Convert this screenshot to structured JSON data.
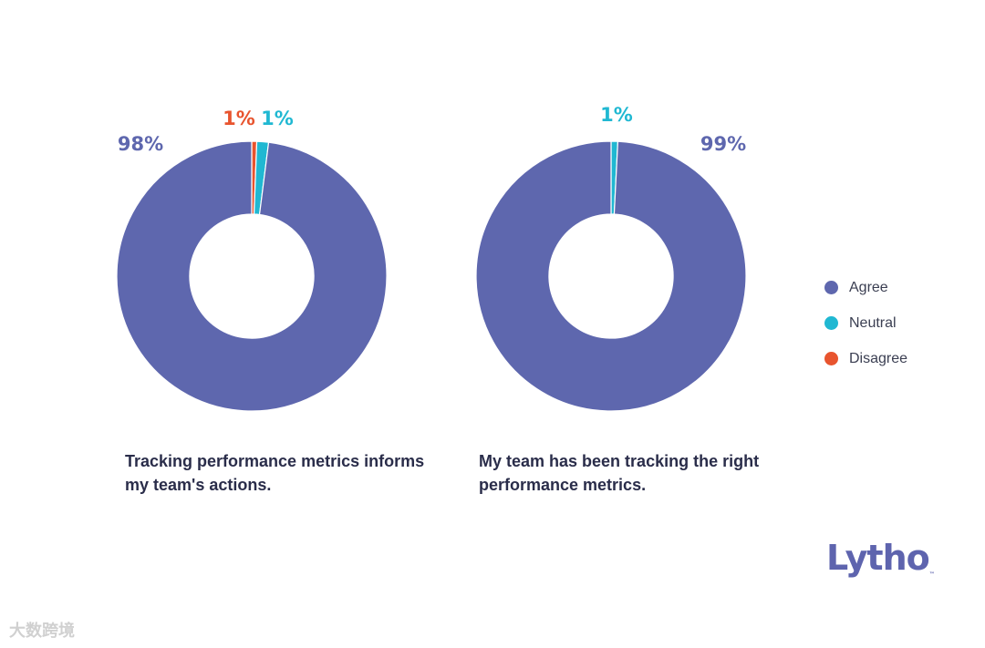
{
  "colors": {
    "agree": "#5e67ae",
    "neutral": "#20b8d2",
    "disagree": "#e8542e",
    "text": "#2a2d4a"
  },
  "chart_data": [
    {
      "type": "pie",
      "hole": 0.46,
      "caption": "Tracking performance metrics informs my team's actions.",
      "slices": [
        {
          "name": "Agree",
          "value": 98,
          "label": "98%",
          "color_key": "agree"
        },
        {
          "name": "Disagree",
          "value": 0.6,
          "label": "1%",
          "color_key": "disagree"
        },
        {
          "name": "Neutral",
          "value": 1.4,
          "label": "1%",
          "color_key": "neutral"
        }
      ]
    },
    {
      "type": "pie",
      "hole": 0.46,
      "caption": "My team has been tracking the right performance metrics.",
      "slices": [
        {
          "name": "Agree",
          "value": 99.2,
          "label": "99%",
          "color_key": "agree"
        },
        {
          "name": "Neutral",
          "value": 0.8,
          "label": "1%",
          "color_key": "neutral"
        }
      ]
    }
  ],
  "legend": [
    {
      "label": "Agree",
      "color_key": "agree"
    },
    {
      "label": "Neutral",
      "color_key": "neutral"
    },
    {
      "label": "Disagree",
      "color_key": "disagree"
    }
  ],
  "logo": {
    "text": "Lytho",
    "tm": "™"
  },
  "watermark": "大数跨境"
}
